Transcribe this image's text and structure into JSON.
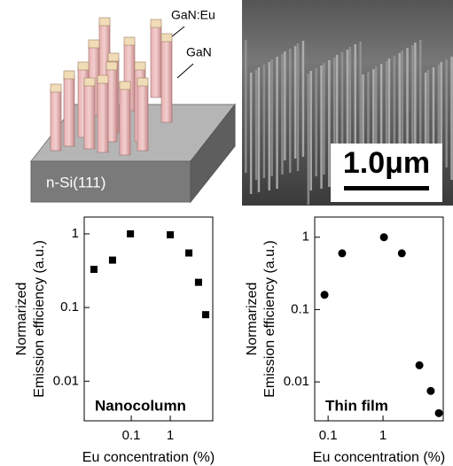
{
  "figure": {
    "schematic_labels": [
      "GaN:Eu",
      "GaN",
      "n-Si(111)"
    ],
    "scale_bar": "1.0μm"
  },
  "chart_data": [
    {
      "type": "scatter",
      "marker": "square",
      "color": "#000000",
      "annotation": "Nanocolumn",
      "xlabel": "Eu concentration (%)",
      "ylabel": [
        "Normarized",
        "Emission efficiency (a.u.)"
      ],
      "log_x": true,
      "log_y": true,
      "x": [
        0.011,
        0.033,
        0.095,
        1,
        3,
        5.3,
        8.1
      ],
      "values": [
        0.33,
        0.44,
        1,
        0.97,
        0.55,
        0.22,
        0.08
      ],
      "xlim": [
        0.0062,
        12.3
      ],
      "ylim": [
        0.0029,
        1.69
      ],
      "xticks": [
        0.1,
        1
      ],
      "yticks": [
        0.01,
        0.1,
        1
      ]
    },
    {
      "type": "scatter",
      "marker": "circle",
      "color": "#000000",
      "annotation": "Thin film",
      "xlabel": "Eu concentration (%)",
      "ylabel": [
        "Normarized",
        "Emission efficiency (a.u.)"
      ],
      "log_x": true,
      "log_y": true,
      "x": [
        0.086,
        0.18,
        1.04,
        2.2,
        4.6,
        7.4,
        10.4
      ],
      "values": [
        0.16,
        0.6,
        1,
        0.6,
        0.017,
        0.0075,
        0.0037
      ],
      "xlim": [
        0.057,
        12.5
      ],
      "ylim": [
        0.0029,
        1.9
      ],
      "xticks": [
        0.1,
        1
      ],
      "yticks": [
        0.01,
        0.1,
        1
      ]
    }
  ]
}
